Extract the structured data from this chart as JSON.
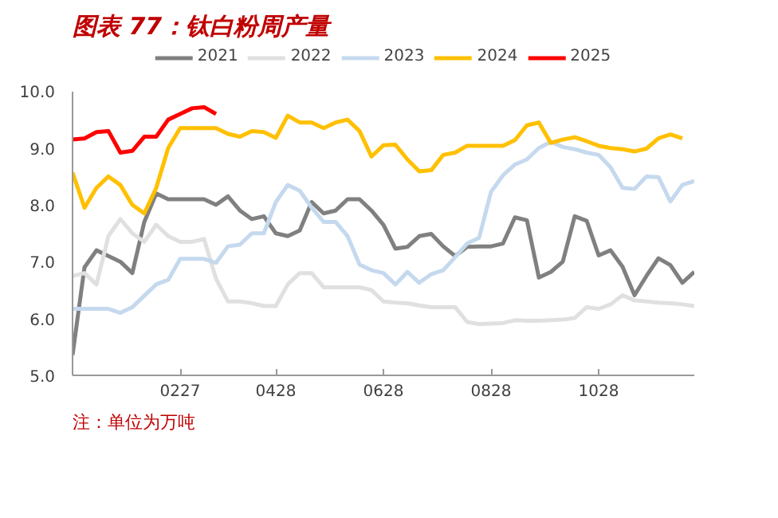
{
  "chart_data": {
    "type": "line",
    "title": "图表 77：钛白粉周产量",
    "annotations": [
      "注：单位为万吨"
    ],
    "ylim": [
      5,
      10
    ],
    "categories": [
      null,
      null,
      null,
      null,
      null,
      null,
      null,
      null,
      null,
      "0227",
      null,
      null,
      null,
      null,
      null,
      null,
      null,
      "0428",
      null,
      null,
      null,
      null,
      null,
      null,
      null,
      null,
      "0628",
      null,
      null,
      null,
      null,
      null,
      null,
      null,
      null,
      "0828",
      null,
      null,
      null,
      null,
      null,
      null,
      null,
      null,
      "1028",
      null,
      null,
      null,
      null,
      null,
      null,
      null,
      null
    ],
    "yticks": [
      {
        "value": 5,
        "label": "5.0"
      },
      {
        "value": 6,
        "label": "6.0"
      },
      {
        "value": 7,
        "label": "7.0"
      },
      {
        "value": 8,
        "label": "8.0"
      },
      {
        "value": 9,
        "label": "9.0"
      },
      {
        "value": 10,
        "label": "10.0"
      }
    ],
    "grid": false,
    "legend": "top",
    "series": [
      {
        "name": "2021",
        "color": "#808080",
        "values": [
          5.36,
          6.9,
          7.2,
          7.1,
          7.0,
          6.8,
          7.7,
          8.2,
          8.1,
          8.1,
          8.1,
          8.1,
          8.0,
          8.15,
          7.9,
          7.75,
          7.8,
          7.5,
          7.45,
          7.55,
          8.05,
          7.85,
          7.9,
          8.1,
          8.1,
          7.9,
          7.65,
          7.23,
          7.26,
          7.45,
          7.49,
          7.27,
          7.1,
          7.26,
          7.27,
          7.27,
          7.32,
          7.78,
          7.73,
          6.72,
          6.82,
          7.0,
          7.8,
          7.72,
          7.11,
          7.2,
          6.91,
          6.41,
          6.75,
          7.06,
          6.94,
          6.63,
          6.82
        ]
      },
      {
        "name": "2022",
        "color": "#e0e0e0",
        "values": [
          6.75,
          6.8,
          6.6,
          7.45,
          7.75,
          7.5,
          7.35,
          7.65,
          7.45,
          7.35,
          7.35,
          7.4,
          6.7,
          6.3,
          6.3,
          6.27,
          6.22,
          6.22,
          6.6,
          6.8,
          6.8,
          6.55,
          6.55,
          6.55,
          6.55,
          6.5,
          6.3,
          6.28,
          6.27,
          6.23,
          6.2,
          6.2,
          6.2,
          5.94,
          5.9,
          5.91,
          5.92,
          5.97,
          5.96,
          5.96,
          5.97,
          5.98,
          6.01,
          6.2,
          6.17,
          6.25,
          6.41,
          6.32,
          6.3,
          6.28,
          6.27,
          6.25,
          6.22
        ]
      },
      {
        "name": "2023",
        "color": "#c5d9ee",
        "values": [
          6.17,
          6.17,
          6.17,
          6.17,
          6.1,
          6.2,
          6.4,
          6.6,
          6.68,
          7.05,
          7.05,
          7.05,
          6.98,
          7.27,
          7.3,
          7.5,
          7.5,
          8.05,
          8.35,
          8.25,
          7.95,
          7.7,
          7.7,
          7.45,
          6.95,
          6.85,
          6.8,
          6.6,
          6.82,
          6.63,
          6.78,
          6.85,
          7.08,
          7.32,
          7.42,
          8.23,
          8.52,
          8.71,
          8.8,
          9.0,
          9.11,
          9.02,
          8.98,
          8.92,
          8.88,
          8.66,
          8.3,
          8.28,
          8.5,
          8.49,
          8.06,
          8.35,
          8.42
        ]
      },
      {
        "name": "2024",
        "color": "#ffc000",
        "values": [
          8.57,
          7.95,
          8.3,
          8.5,
          8.35,
          8.0,
          7.85,
          8.3,
          9.0,
          9.35,
          9.35,
          9.35,
          9.35,
          9.25,
          9.2,
          9.3,
          9.28,
          9.18,
          9.57,
          9.45,
          9.45,
          9.35,
          9.45,
          9.5,
          9.3,
          8.85,
          9.05,
          9.06,
          8.8,
          8.59,
          8.61,
          8.88,
          8.92,
          9.04,
          9.04,
          9.04,
          9.04,
          9.14,
          9.4,
          9.45,
          9.09,
          9.15,
          9.19,
          9.12,
          9.04,
          9.0,
          8.98,
          8.94,
          8.99,
          9.17,
          9.24,
          9.17,
          null
        ]
      },
      {
        "name": "2025",
        "color": "#ff0000",
        "values": [
          9.15,
          9.17,
          9.28,
          9.3,
          8.92,
          8.95,
          9.2,
          9.2,
          9.5,
          9.6,
          9.7,
          9.72,
          9.6,
          null,
          null,
          null,
          null,
          null,
          null,
          null,
          null,
          null,
          null,
          null,
          null,
          null,
          null,
          null,
          null,
          null,
          null,
          null,
          null,
          null,
          null,
          null,
          null,
          null,
          null,
          null,
          null,
          null,
          null,
          null,
          null,
          null,
          null,
          null,
          null,
          null,
          null,
          null,
          null
        ]
      }
    ]
  }
}
